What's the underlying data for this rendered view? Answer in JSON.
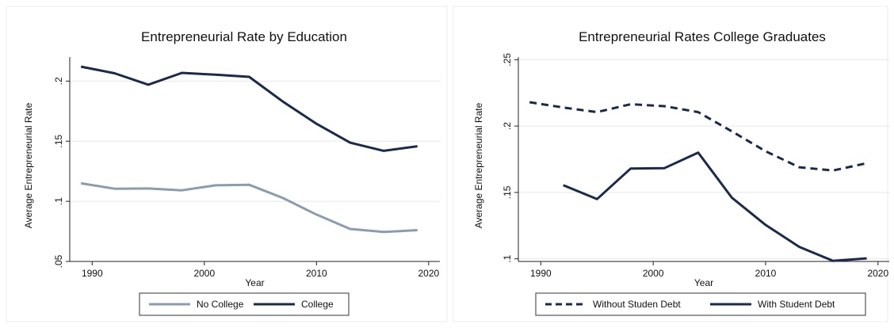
{
  "chart_data": [
    {
      "type": "line",
      "title": "Entrepreneurial Rate by Education",
      "xlabel": "Year",
      "ylabel": "Average Entrepreneurial Rate",
      "xlim": [
        1988,
        2021
      ],
      "ylim": [
        0.05,
        0.22
      ],
      "xticks": [
        1990,
        2000,
        2010,
        2020
      ],
      "yticks": [
        0.05,
        0.1,
        0.15,
        0.2
      ],
      "ytick_labels": [
        ".05",
        ".1",
        ".15",
        ".2"
      ],
      "grid": true,
      "legend_position": "bottom",
      "series": [
        {
          "name": "No College",
          "color": "#8a9cae",
          "dash": "solid",
          "x": [
            1989,
            1992,
            1995,
            1998,
            2001,
            2004,
            2007,
            2010,
            2013,
            2016,
            2019
          ],
          "y": [
            0.115,
            0.1105,
            0.1107,
            0.1092,
            0.1133,
            0.1138,
            0.1028,
            0.089,
            0.077,
            0.0745,
            0.076
          ]
        },
        {
          "name": "College",
          "color": "#1b2a4a",
          "dash": "solid",
          "x": [
            1989,
            1992,
            1995,
            1998,
            2001,
            2004,
            2007,
            2010,
            2013,
            2016,
            2019
          ],
          "y": [
            0.212,
            0.2065,
            0.197,
            0.2068,
            0.2053,
            0.2035,
            0.183,
            0.1645,
            0.1488,
            0.142,
            0.1458
          ]
        }
      ]
    },
    {
      "type": "line",
      "title": "Entrepreneurial Rates College Graduates",
      "xlabel": "Year",
      "ylabel": "Average Entrepreneurial Rate",
      "xlim": [
        1988,
        2021
      ],
      "ylim": [
        0.098,
        0.252
      ],
      "xticks": [
        1990,
        2000,
        2010,
        2020
      ],
      "yticks": [
        0.1,
        0.15,
        0.2,
        0.25
      ],
      "ytick_labels": [
        ".1",
        ".15",
        ".2",
        ".25"
      ],
      "grid": true,
      "legend_position": "bottom",
      "series": [
        {
          "name": "Without Studen Debt",
          "color": "#1b2a4a",
          "dash": "dashed",
          "x": [
            1989,
            1992,
            1995,
            1998,
            2001,
            2004,
            2007,
            2010,
            2013,
            2016,
            2019
          ],
          "y": [
            0.218,
            0.214,
            0.2105,
            0.2165,
            0.215,
            0.2105,
            0.196,
            0.181,
            0.169,
            0.1665,
            0.172
          ]
        },
        {
          "name": "With Student Debt",
          "color": "#1b2a4a",
          "dash": "solid",
          "x": [
            1992,
            1995,
            1998,
            2001,
            2004,
            2007,
            2010,
            2013,
            2016,
            2019
          ],
          "y": [
            0.1555,
            0.145,
            0.168,
            0.1683,
            0.18,
            0.146,
            0.1255,
            0.109,
            0.0985,
            0.1003
          ]
        }
      ]
    }
  ]
}
